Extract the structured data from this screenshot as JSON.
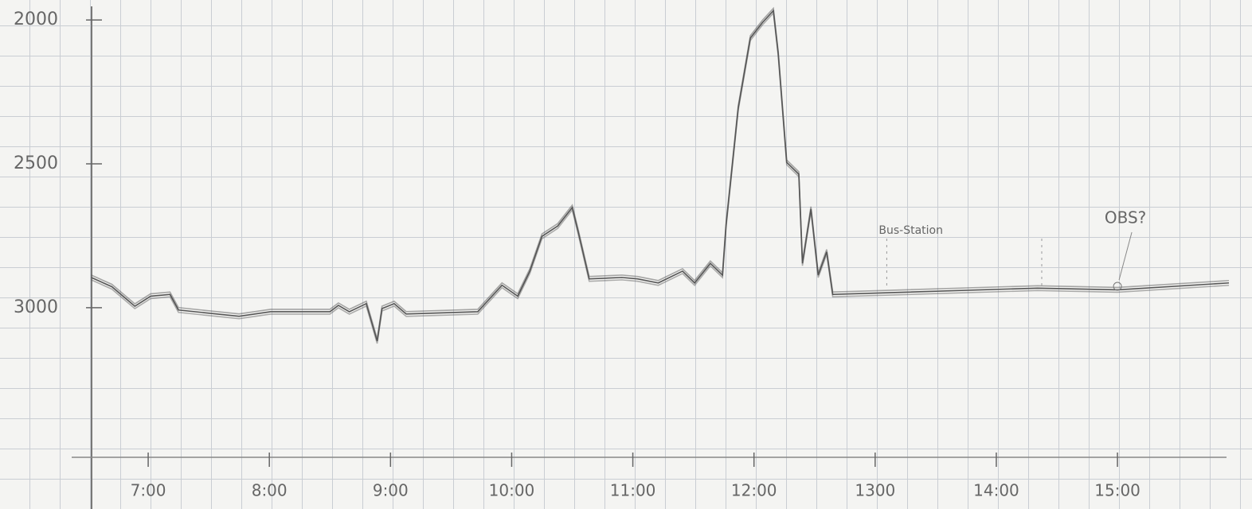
{
  "chart_data": {
    "type": "line",
    "x": [
      6.53,
      6.7,
      6.89,
      7.02,
      7.18,
      7.25,
      7.75,
      8.01,
      8.5,
      8.57,
      8.66,
      8.8,
      8.89,
      8.93,
      9.03,
      9.13,
      9.72,
      9.92,
      10.05,
      10.15,
      10.25,
      10.38,
      10.5,
      10.55,
      10.64,
      10.91,
      11.04,
      11.21,
      11.41,
      11.51,
      11.64,
      11.74,
      11.77,
      11.87,
      11.97,
      12.07,
      12.16,
      12.2,
      12.27,
      12.37,
      12.4,
      12.47,
      12.53,
      12.6,
      12.65,
      13.03,
      14.34,
      15.0,
      15.92
    ],
    "series": [
      {
        "color": "#555555",
        "values": [
          2895,
          2927,
          2995,
          2960,
          2954,
          3008,
          3030,
          3014,
          3014,
          2992,
          3014,
          2986,
          3116,
          3003,
          2986,
          3022,
          3014,
          2922,
          2960,
          2873,
          2752,
          2716,
          2652,
          2738,
          2900,
          2895,
          2900,
          2914,
          2873,
          2914,
          2846,
          2887,
          2711,
          2306,
          2063,
          2009,
          1968,
          2117,
          2495,
          2536,
          2846,
          2657,
          2887,
          2806,
          2954,
          2949,
          2932,
          2938,
          2914
        ]
      }
    ],
    "xlim": [
      6.5,
      15.9
    ],
    "xticks": [
      {
        "value": 7,
        "label": "7:00"
      },
      {
        "value": 8,
        "label": "8:00"
      },
      {
        "value": 9,
        "label": "9:00"
      },
      {
        "value": 10,
        "label": "10:00"
      },
      {
        "value": 11,
        "label": "11:00"
      },
      {
        "value": 12,
        "label": "12:00"
      },
      {
        "value": 13,
        "label": "1300"
      },
      {
        "value": 14,
        "label": "14:00"
      },
      {
        "value": 15,
        "label": "15:00"
      }
    ],
    "ylim": [
      3520,
      1950
    ],
    "yticks": [
      2000,
      2500,
      3000
    ],
    "annotations": [
      {
        "text": "Bus-Station",
        "x": 13.03
      },
      {
        "text": "OBS?",
        "x": 15.0
      }
    ],
    "grid": true
  }
}
